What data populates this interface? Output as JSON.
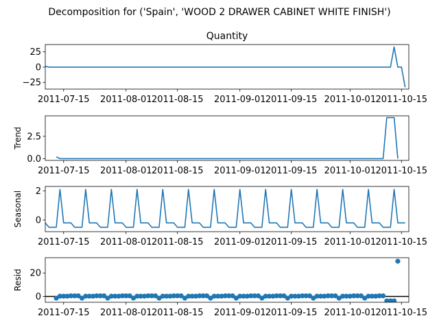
{
  "chart_data": {
    "type": "line",
    "title": "Decomposition for ('Spain', 'WOOD 2 DRAWER CABINET WHITE FINISH')",
    "date_axis": {
      "ticks": [
        "2011-07-15",
        "2011-08-01",
        "2011-08-15",
        "2011-09-01",
        "2011-09-15",
        "2011-10-01",
        "2011-10-15"
      ],
      "range": [
        "2011-07-10",
        "2011-10-17"
      ]
    },
    "panels": [
      {
        "name": "quantity",
        "title": "Quantity",
        "ylabel": "",
        "kind": "line",
        "color": "#1f77b4",
        "ylim": [
          -36,
          37
        ],
        "yticks": [
          -25,
          0,
          25
        ],
        "yticklabels": [
          "−25",
          "0",
          "25"
        ],
        "points": [
          [
            "2011-07-10",
            1.5
          ],
          [
            "2011-07-11",
            0
          ],
          [
            "2011-10-12",
            0
          ],
          [
            "2011-10-13",
            33
          ],
          [
            "2011-10-14",
            0
          ],
          [
            "2011-10-15",
            0
          ],
          [
            "2011-10-16",
            -33
          ]
        ]
      },
      {
        "name": "trend",
        "title": "",
        "ylabel": "Trend",
        "kind": "line",
        "color": "#1f77b4",
        "ylim": [
          -0.2,
          4.8
        ],
        "yticks": [
          0,
          2.5
        ],
        "yticklabels": [
          "0.0",
          "2.5"
        ],
        "points": [
          [
            "2011-07-13",
            0.2
          ],
          [
            "2011-07-14",
            0
          ],
          [
            "2011-10-10",
            0
          ],
          [
            "2011-10-11",
            4.6
          ],
          [
            "2011-10-13",
            4.6
          ],
          [
            "2011-10-14",
            0
          ]
        ]
      },
      {
        "name": "seasonal",
        "title": "",
        "ylabel": "Seasonal",
        "kind": "line",
        "color": "#1f77b4",
        "ylim": [
          -0.8,
          2.3
        ],
        "yticks": [
          0,
          2
        ],
        "yticklabels": [
          "0",
          "2"
        ],
        "start": "2011-07-10",
        "end": "2011-10-16",
        "weekly_pattern": [
          -0.2,
          -0.5,
          -0.5,
          -0.5,
          2.1,
          -0.2,
          -0.2
        ]
      },
      {
        "name": "resid",
        "title": "",
        "ylabel": "Resid",
        "kind": "scatter",
        "color": "#1f77b4",
        "ylim": [
          -5,
          33
        ],
        "yticks": [
          0,
          20
        ],
        "yticklabels": [
          "0",
          "20"
        ],
        "zero_line": true,
        "start": "2011-07-13",
        "points_pattern": [
          -1.5,
          0.2,
          0.2,
          0.2,
          0.5,
          0.5,
          0.5
        ],
        "points_end": "2011-10-10",
        "tail_points": [
          [
            "2011-10-11",
            -3.8
          ],
          [
            "2011-10-12",
            -3.8
          ],
          [
            "2011-10-13",
            -3.8
          ],
          [
            "2011-10-14",
            30
          ]
        ]
      }
    ]
  }
}
